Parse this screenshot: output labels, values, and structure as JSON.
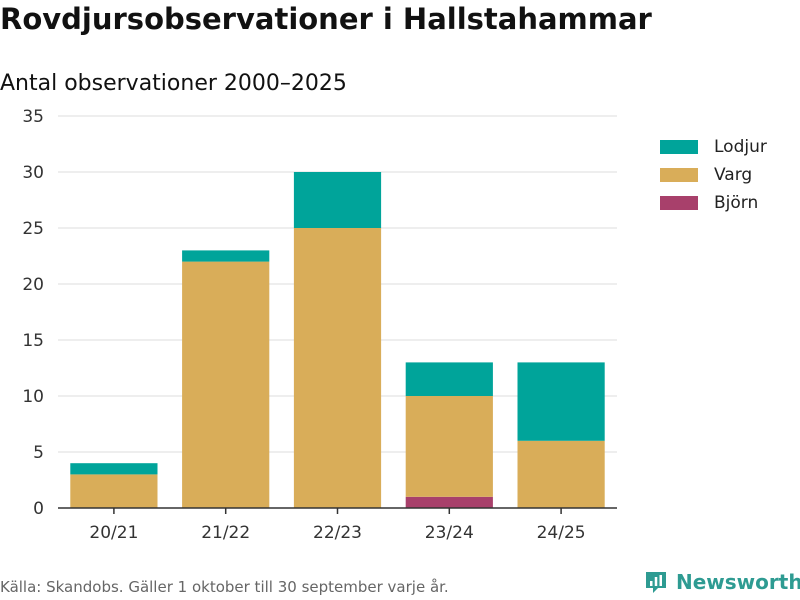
{
  "header": {
    "title": "Rovdjursobservationer i Hallstahammar",
    "subtitle": "Antal observationer 2000–2025"
  },
  "footer": {
    "source": "Källa: Skandobs. Gäller 1 oktober till 30 september varje år.",
    "brand": "Newsworthy",
    "brand_icon": "newsworthy-logo-icon"
  },
  "legend": {
    "items": [
      {
        "label": "Lodjur",
        "color": "#00a49a"
      },
      {
        "label": "Varg",
        "color": "#d9ad59"
      },
      {
        "label": "Björn",
        "color": "#a8406b"
      }
    ]
  },
  "chart_data": {
    "type": "bar",
    "stacked": true,
    "title": "Rovdjursobservationer i Hallstahammar",
    "subtitle": "Antal observationer 2000–2025",
    "xlabel": "",
    "ylabel": "",
    "categories": [
      "20/21",
      "21/22",
      "22/23",
      "23/24",
      "24/25"
    ],
    "series": [
      {
        "name": "Björn",
        "color": "#a8406b",
        "values": [
          0,
          0,
          0,
          1,
          0
        ]
      },
      {
        "name": "Varg",
        "color": "#d9ad59",
        "values": [
          3,
          22,
          25,
          9,
          6
        ]
      },
      {
        "name": "Lodjur",
        "color": "#00a49a",
        "values": [
          1,
          1,
          5,
          3,
          7
        ]
      }
    ],
    "ylim": [
      0,
      35
    ],
    "yticks": [
      "0",
      "5",
      "10",
      "15",
      "20",
      "25",
      "30",
      "35"
    ],
    "grid": true,
    "legend_position": "top-right"
  }
}
